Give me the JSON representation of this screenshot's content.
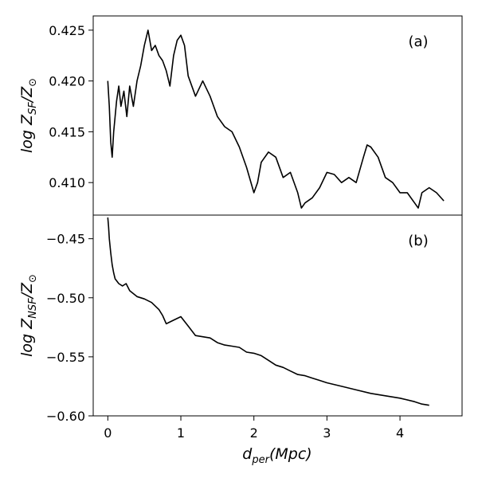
{
  "chart_data": [
    {
      "type": "line",
      "panel_label": "(a)",
      "ylabel": {
        "prefix": "log ",
        "main": "Z",
        "sub": "SF",
        "suffix": "/Z",
        "sub2": "⊙"
      },
      "ylim": [
        0.4068,
        0.4264
      ],
      "yticks": [
        0.41,
        0.415,
        0.42,
        0.425
      ],
      "ytick_labels": [
        "0.410",
        "0.415",
        "0.420",
        "0.425"
      ],
      "xlim": [
        -0.2,
        4.85
      ],
      "grid": false,
      "series": [
        {
          "color": "#000000",
          "x": [
            0.0,
            0.02,
            0.04,
            0.06,
            0.08,
            0.1,
            0.12,
            0.15,
            0.18,
            0.22,
            0.26,
            0.3,
            0.35,
            0.4,
            0.45,
            0.5,
            0.55,
            0.6,
            0.65,
            0.7,
            0.75,
            0.8,
            0.85,
            0.9,
            0.95,
            1.0,
            1.05,
            1.1,
            1.2,
            1.3,
            1.4,
            1.5,
            1.6,
            1.7,
            1.8,
            1.9,
            2.0,
            2.05,
            2.1,
            2.2,
            2.3,
            2.4,
            2.5,
            2.6,
            2.65,
            2.7,
            2.8,
            2.9,
            3.0,
            3.1,
            3.2,
            3.3,
            3.4,
            3.5,
            3.55,
            3.6,
            3.7,
            3.8,
            3.9,
            4.0,
            4.1,
            4.2,
            4.25,
            4.3,
            4.4,
            4.5,
            4.6
          ],
          "y": [
            0.42,
            0.4175,
            0.414,
            0.4125,
            0.415,
            0.4165,
            0.418,
            0.4195,
            0.4175,
            0.419,
            0.4165,
            0.4195,
            0.4175,
            0.42,
            0.4215,
            0.4235,
            0.425,
            0.423,
            0.4235,
            0.4225,
            0.422,
            0.421,
            0.4195,
            0.4225,
            0.424,
            0.4245,
            0.4235,
            0.4205,
            0.4185,
            0.42,
            0.4185,
            0.4165,
            0.4155,
            0.415,
            0.4135,
            0.4115,
            0.409,
            0.41,
            0.412,
            0.413,
            0.4125,
            0.4105,
            0.411,
            0.409,
            0.4075,
            0.408,
            0.4085,
            0.4095,
            0.411,
            0.4108,
            0.41,
            0.4105,
            0.41,
            0.4125,
            0.4137,
            0.4135,
            0.4125,
            0.4105,
            0.41,
            0.409,
            0.409,
            0.408,
            0.4075,
            0.409,
            0.4095,
            0.409,
            0.4082
          ]
        }
      ]
    },
    {
      "type": "line",
      "panel_label": "(b)",
      "ylabel": {
        "prefix": "log ",
        "main": "Z",
        "sub": "NSF",
        "suffix": "/Z",
        "sub2": "⊙"
      },
      "xlabel": {
        "main": "d",
        "sub": "per",
        "suffix": "(Mpc)"
      },
      "ylim": [
        -0.6,
        -0.43
      ],
      "yticks": [
        -0.6,
        -0.55,
        -0.5,
        -0.45
      ],
      "ytick_labels": [
        "−0.60",
        "−0.55",
        "−0.50",
        "−0.45"
      ],
      "xlim": [
        -0.2,
        4.85
      ],
      "xticks": [
        0,
        1,
        2,
        3,
        4
      ],
      "xtick_labels": [
        "0",
        "1",
        "2",
        "3",
        "4"
      ],
      "grid": false,
      "series": [
        {
          "color": "#000000",
          "x": [
            0.0,
            0.01,
            0.02,
            0.04,
            0.06,
            0.08,
            0.1,
            0.15,
            0.2,
            0.25,
            0.3,
            0.4,
            0.5,
            0.6,
            0.7,
            0.75,
            0.8,
            0.9,
            1.0,
            1.1,
            1.2,
            1.3,
            1.4,
            1.5,
            1.6,
            1.7,
            1.8,
            1.9,
            2.0,
            2.1,
            2.2,
            2.3,
            2.4,
            2.5,
            2.6,
            2.7,
            2.8,
            2.9,
            3.0,
            3.2,
            3.4,
            3.6,
            3.8,
            4.0,
            4.2,
            4.3,
            4.4
          ],
          "y": [
            -0.432,
            -0.44,
            -0.45,
            -0.462,
            -0.472,
            -0.479,
            -0.484,
            -0.488,
            -0.49,
            -0.488,
            -0.494,
            -0.499,
            -0.501,
            -0.504,
            -0.51,
            -0.515,
            -0.522,
            -0.519,
            -0.516,
            -0.524,
            -0.532,
            -0.533,
            -0.534,
            -0.538,
            -0.54,
            -0.541,
            -0.542,
            -0.546,
            -0.547,
            -0.549,
            -0.553,
            -0.557,
            -0.559,
            -0.562,
            -0.565,
            -0.566,
            -0.568,
            -0.57,
            -0.572,
            -0.575,
            -0.578,
            -0.581,
            -0.583,
            -0.585,
            -0.588,
            -0.59,
            -0.591
          ]
        }
      ]
    }
  ]
}
